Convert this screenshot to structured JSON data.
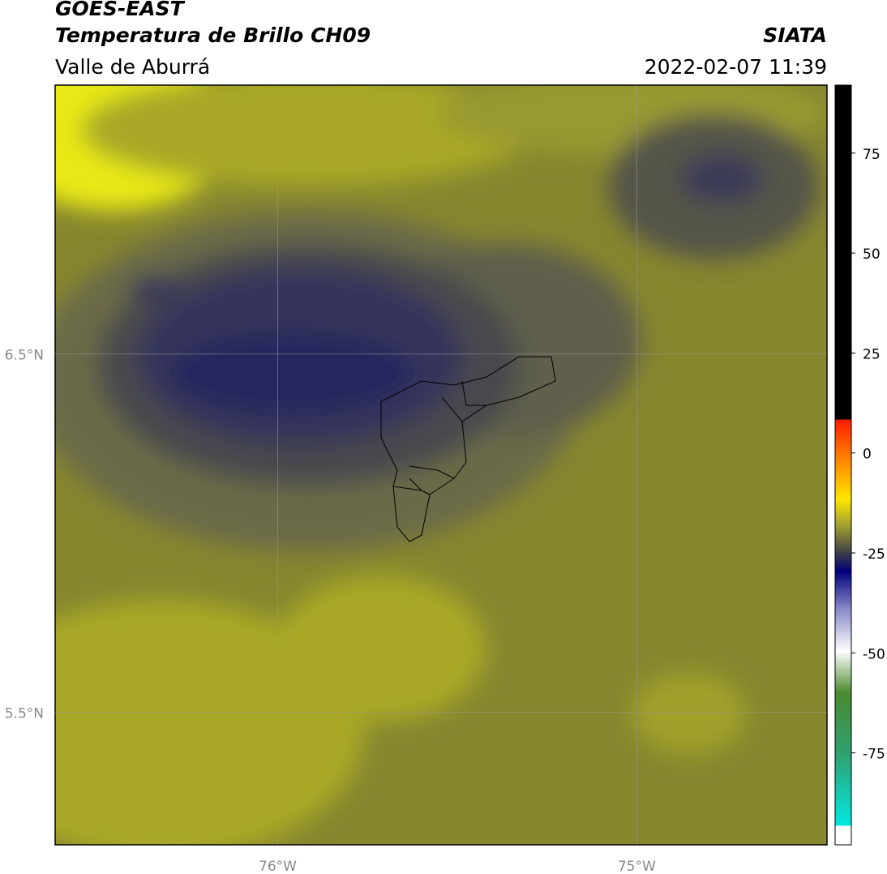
{
  "header": {
    "satellite": "GOES-EAST",
    "product": "Temperatura de Brillo CH09",
    "region": "Valle de Aburrá",
    "agency": "SIATA",
    "datetime": "2022-02-07 11:39"
  },
  "map": {
    "lat_lim": [
      5.13,
      7.25
    ],
    "lon_lim": [
      -76.62,
      -74.47
    ],
    "lat_ticks": [
      {
        "value": 6.5,
        "label": "6.5°N"
      },
      {
        "value": 5.5,
        "label": "5.5°N"
      }
    ],
    "lon_ticks": [
      {
        "value": -76,
        "label": "76°W"
      },
      {
        "value": -75,
        "label": "75°W"
      }
    ]
  },
  "colorbar": {
    "lim": [
      -98,
      92
    ],
    "ticks": [
      75,
      50,
      25,
      0,
      -25,
      -50,
      -75
    ]
  }
}
